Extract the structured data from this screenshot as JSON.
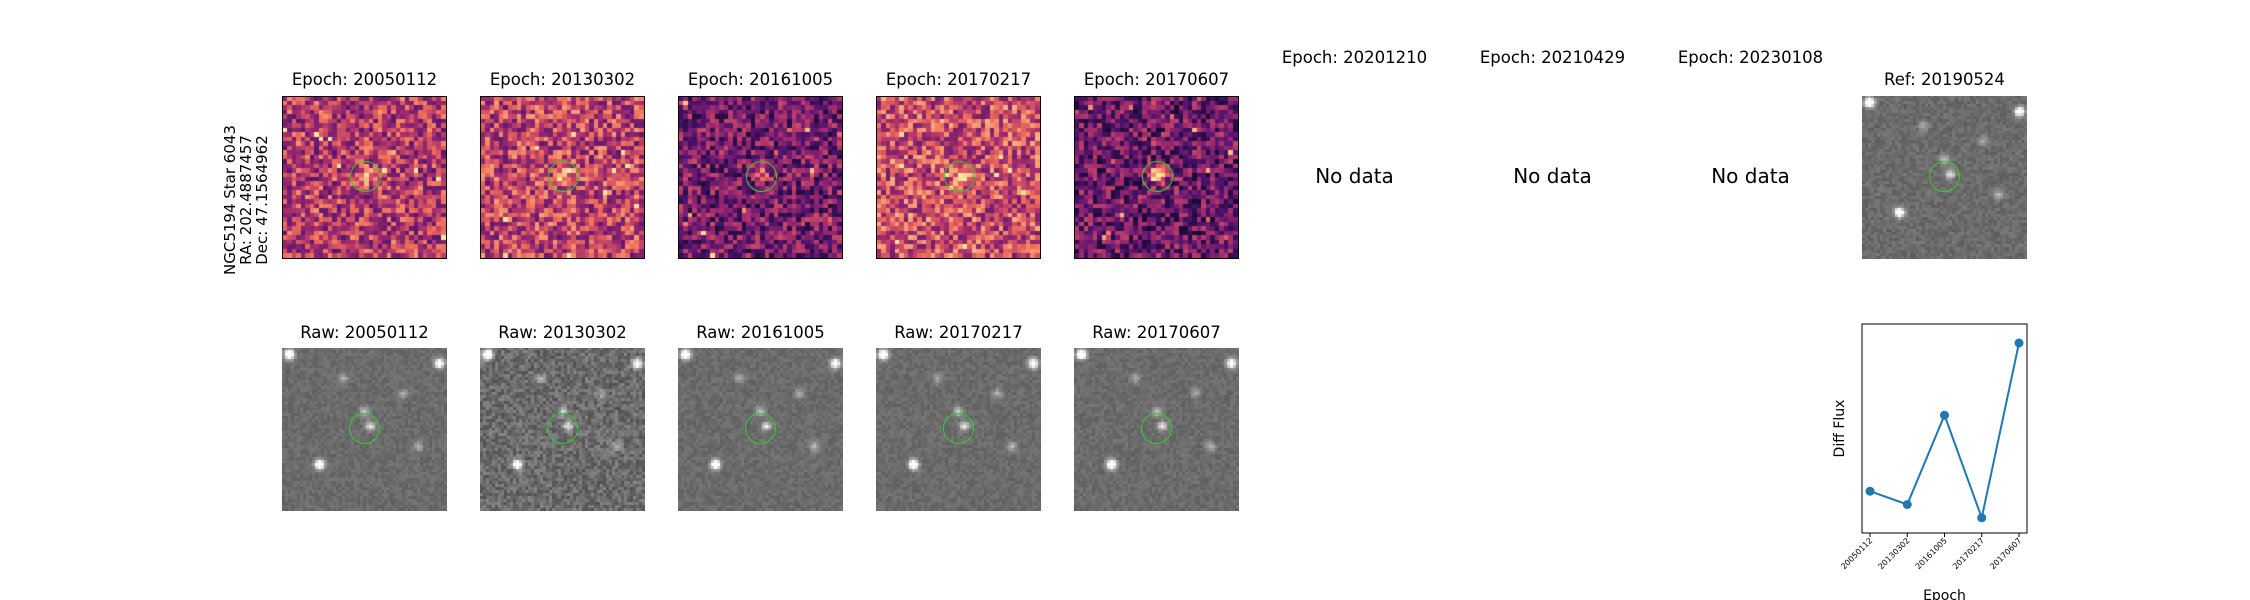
{
  "star_label": {
    "name": "NGC5194 Star 6043",
    "ra": "RA: 202.4887457",
    "dec": "Dec: 47.1564962"
  },
  "diff_row": [
    {
      "title": "Epoch: 20050112",
      "has_data": true
    },
    {
      "title": "Epoch: 20130302",
      "has_data": true
    },
    {
      "title": "Epoch: 20161005",
      "has_data": true
    },
    {
      "title": "Epoch: 20170217",
      "has_data": true
    },
    {
      "title": "Epoch: 20170607",
      "has_data": true
    },
    {
      "title": "Epoch: 20201210",
      "has_data": false,
      "nodata_text": "No data"
    },
    {
      "title": "Epoch: 20210429",
      "has_data": false,
      "nodata_text": "No data"
    },
    {
      "title": "Epoch: 20230108",
      "has_data": false,
      "nodata_text": "No data"
    }
  ],
  "ref": {
    "title": "Ref: 20190524"
  },
  "raw_row": [
    {
      "title": "Raw: 20050112"
    },
    {
      "title": "Raw: 20130302"
    },
    {
      "title": "Raw: 20161005"
    },
    {
      "title": "Raw: 20170217"
    },
    {
      "title": "Raw: 20170607"
    }
  ],
  "colors": {
    "aperture": "#2fd12f",
    "line": "#1f77b4"
  },
  "chart_data": {
    "type": "line",
    "x": [
      "20050112",
      "20130302",
      "20161005",
      "20170217",
      "20170607"
    ],
    "y": [
      0.22,
      0.15,
      0.62,
      0.08,
      1.0
    ],
    "xlabel": "Epoch",
    "ylabel": "Diff Flux",
    "ylim": [
      0,
      1.1
    ],
    "y_ticks_visible": false,
    "grid": false
  }
}
